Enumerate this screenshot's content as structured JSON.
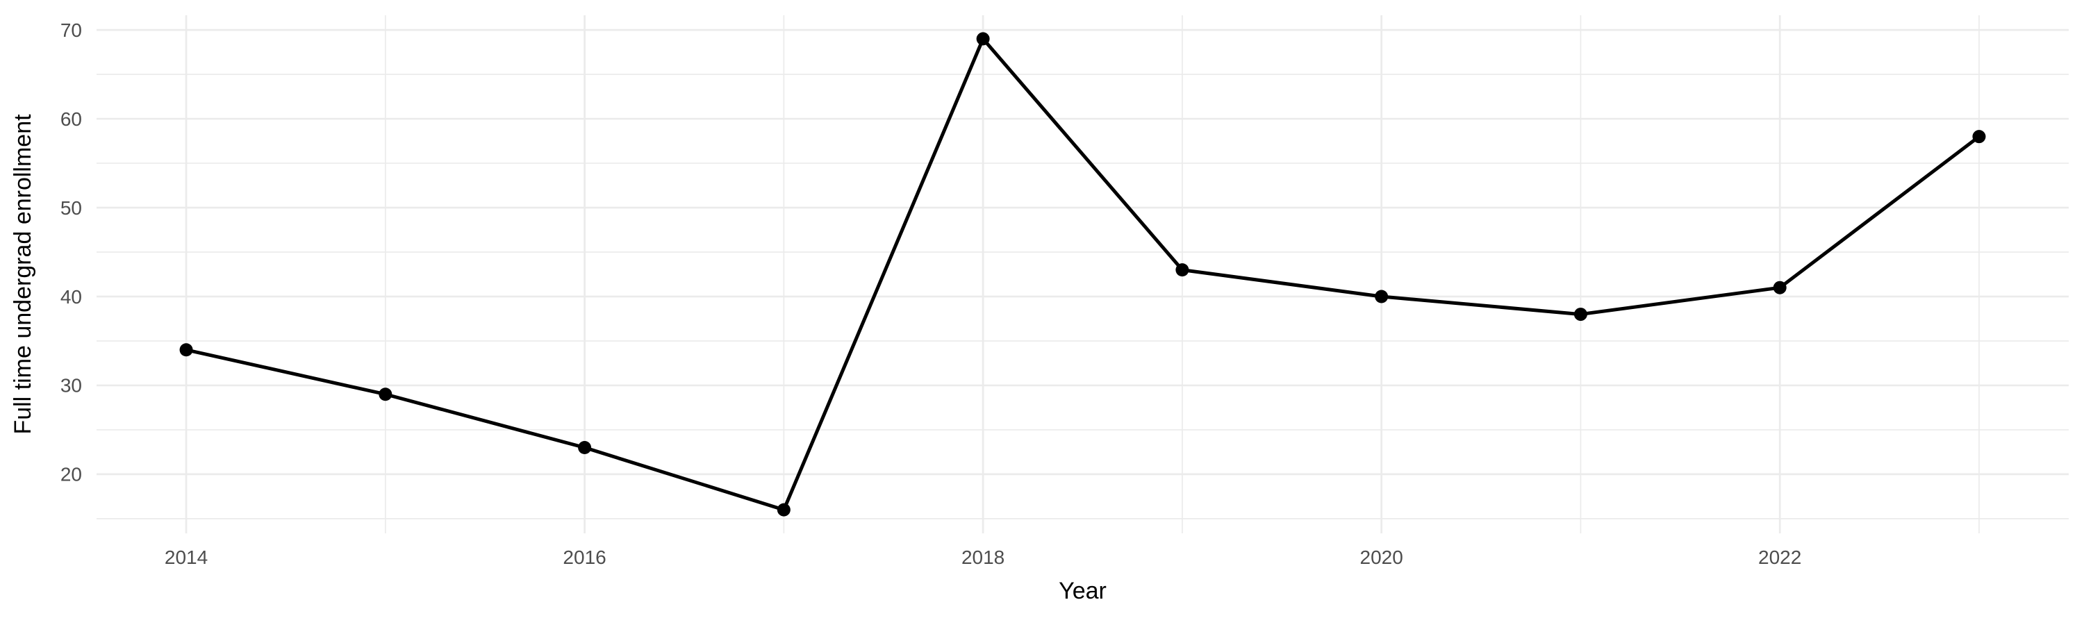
{
  "chart_data": {
    "type": "line",
    "title": "",
    "xlabel": "Year",
    "ylabel": "Full time undergrad enrollment",
    "series": [
      {
        "name": "Full time undergrad enrollment",
        "x": [
          2014,
          2015,
          2016,
          2017,
          2018,
          2019,
          2020,
          2021,
          2022,
          2023
        ],
        "values": [
          34,
          29,
          23,
          16,
          69,
          43,
          40,
          38,
          41,
          58
        ]
      }
    ],
    "xlim": [
      2013.55,
      2023.45
    ],
    "ylim": [
      13.35,
      71.65
    ],
    "x_major_ticks": [
      2014,
      2016,
      2018,
      2020,
      2022
    ],
    "x_tick_labels": [
      "2014",
      "2016",
      "2018",
      "2020",
      "2022"
    ],
    "x_minor_ticks": [
      2015,
      2017,
      2019,
      2021,
      2023
    ],
    "y_major_ticks": [
      20,
      30,
      40,
      50,
      60,
      70
    ],
    "y_tick_labels": [
      "20",
      "30",
      "40",
      "50",
      "60",
      "70"
    ],
    "y_minor_ticks": [
      15,
      25,
      35,
      45,
      55,
      65
    ],
    "grid": true,
    "legend": false,
    "colors": {
      "line": "#000000",
      "point": "#000000",
      "grid": "#EBEBEB",
      "tick_label": "#4D4D4D",
      "axis_title": "#000000",
      "background": "#FFFFFF"
    }
  }
}
